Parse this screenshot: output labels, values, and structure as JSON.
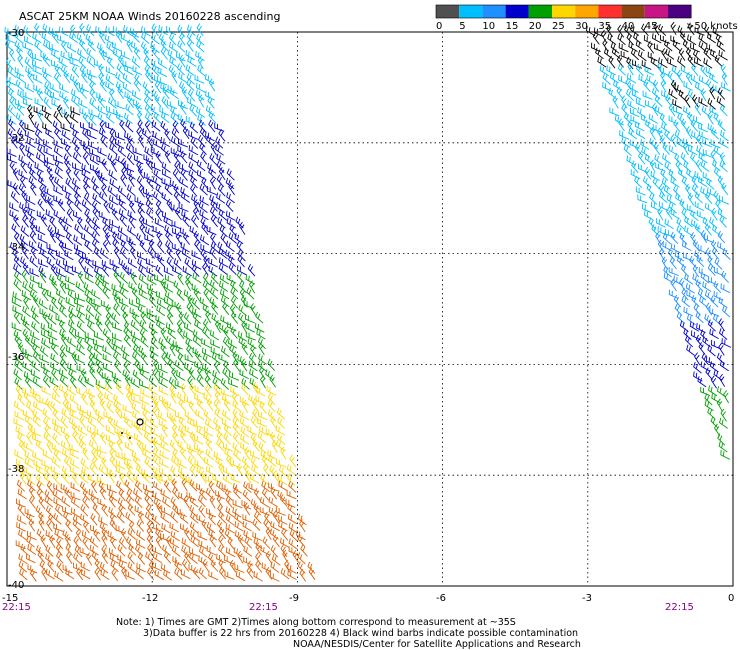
{
  "title": "ASCAT 25KM NOAA Winds 20160228 ascending",
  "legend": {
    "unit_label": ">50 knots",
    "ticks": [
      "0",
      "5",
      "10",
      "15",
      "20",
      "25",
      "30",
      "35",
      "40",
      "45"
    ],
    "colors": [
      "#505050",
      "#00bfff",
      "#1e90ff",
      "#0000cd",
      "#00a000",
      "#ffd700",
      "#ffa500",
      "#ff3030",
      "#8b4513",
      "#c71585",
      "#4b0082"
    ]
  },
  "map": {
    "lat_labels": [
      "-30",
      "-32",
      "-34",
      "-36",
      "-38",
      "-40"
    ],
    "lon_labels": [
      "-15",
      "-12",
      "-9",
      "-6",
      "-3",
      "0"
    ],
    "lon_range": [
      -15,
      0
    ],
    "lat_range": [
      -40,
      -30
    ]
  },
  "pass_times": [
    "22:15",
    "22:15",
    "22:15"
  ],
  "wind_swath": {
    "color_bands_by_latitude": [
      {
        "lat_from": -30,
        "lat_to": -31.8,
        "color": "#00bfff",
        "speed_knots": "5-10"
      },
      {
        "lat_from": -31.8,
        "lat_to": -34.5,
        "color": "#0000cd",
        "speed_knots": "10-15"
      },
      {
        "lat_from": -34.5,
        "lat_to": -36.5,
        "color": "#00a000",
        "speed_knots": "15-20"
      },
      {
        "lat_from": -36.5,
        "lat_to": -38.3,
        "color": "#ffd700",
        "speed_knots": "20-25"
      },
      {
        "lat_from": -38.3,
        "lat_to": -40,
        "color": "#e06000",
        "speed_knots": "25-30"
      }
    ],
    "contamination_color": "#000000"
  },
  "notes": [
    "Note: 1) Times are GMT 2)Times along bottom correspond to measurement at ~35S",
    "3)Data buffer is 22 hrs from 20160228 4) Black wind barbs indicate possible contamination",
    "NOAA/NESDIS/Center for Satellite Applications and Research"
  ]
}
